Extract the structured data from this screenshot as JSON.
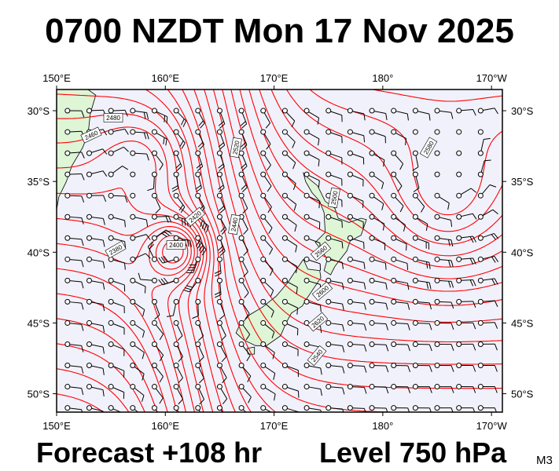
{
  "title": "0700 NZDT Mon 17 Nov 2025",
  "footer": {
    "forecast": "Forecast +108 hr",
    "level": "Level 750 hPa",
    "model": "M3"
  },
  "map": {
    "projection": "equirectangular",
    "lon_range": [
      150,
      191
    ],
    "lat_range": [
      -51.3,
      -28.5
    ],
    "colors": {
      "ocean": "#f1f1fb",
      "land": "#def5d6",
      "contour": "#ff0000",
      "frame": "#000000"
    },
    "lon_ticks": [
      "150°E",
      "160°E",
      "170°E",
      "180°",
      "170°W"
    ],
    "lat_ticks": [
      "30°S",
      "35°S",
      "40°S",
      "45°S",
      "50°S"
    ],
    "contour_labels": [
      "2480",
      "2460",
      "2420",
      "2440",
      "2400",
      "2380",
      "2520",
      "2500",
      "2560",
      "2580",
      "2540",
      "2620",
      "2600"
    ],
    "contour_interval_gpm": 20
  }
}
